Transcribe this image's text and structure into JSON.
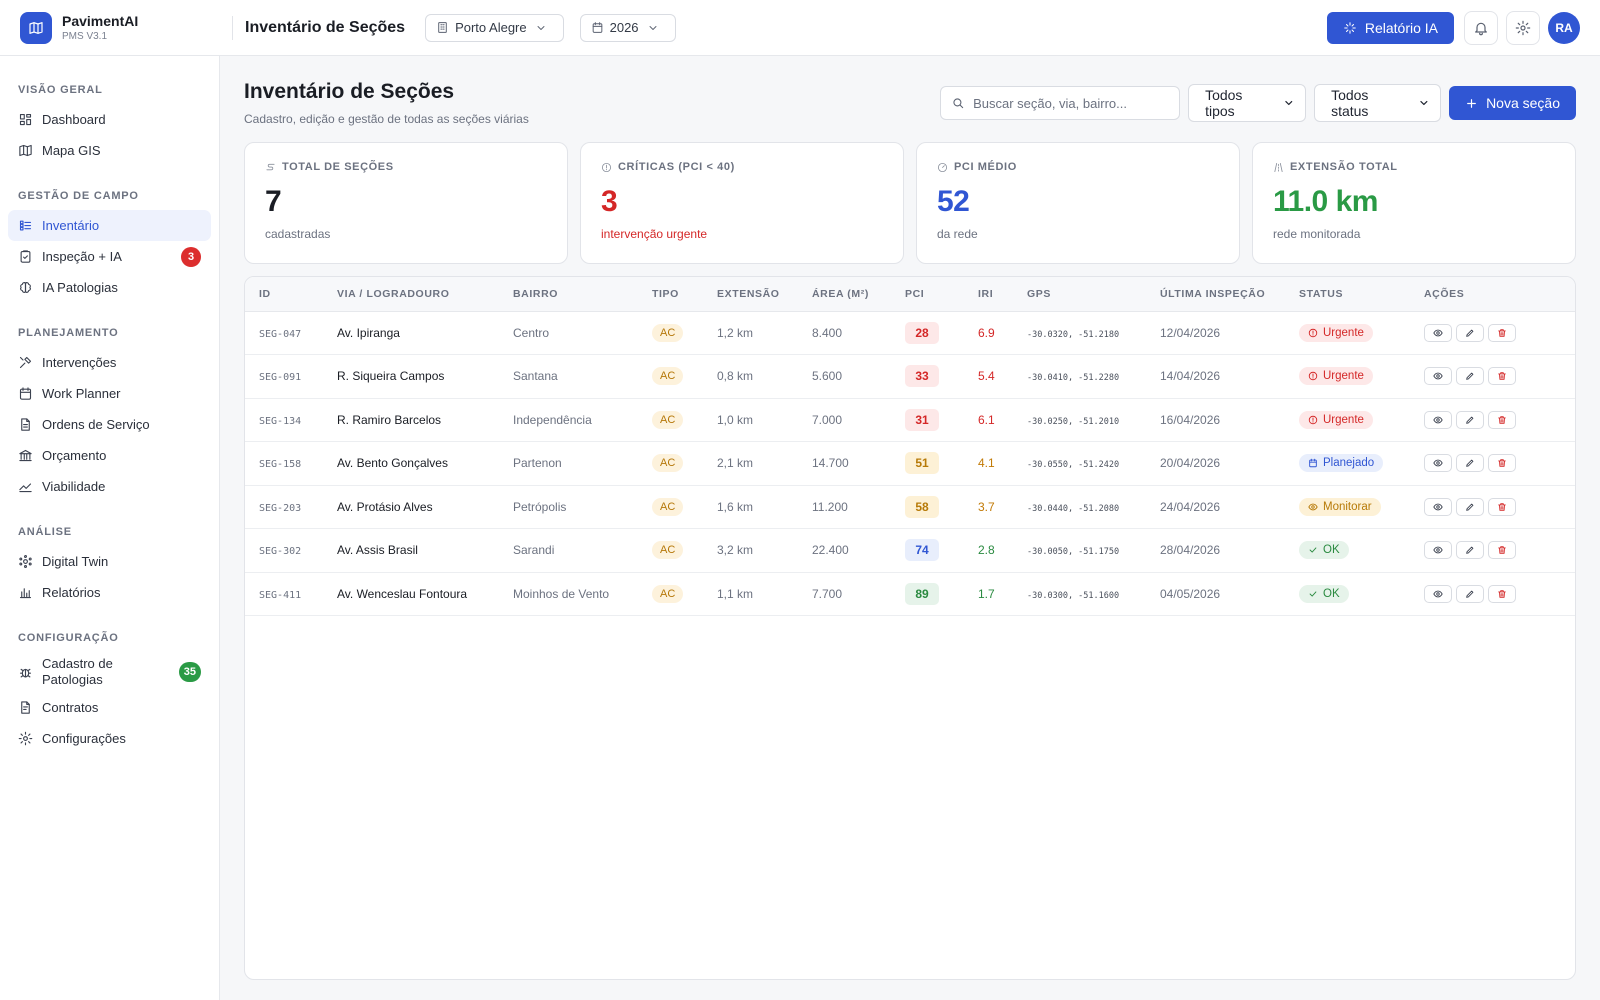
{
  "brand": {
    "name": "PavimentAI",
    "version": "PMS V3.1"
  },
  "topbar": {
    "title": "Inventário de Seções",
    "city": "Porto Alegre",
    "year": "2026",
    "ai_report_label": "Relatório IA",
    "avatar_initials": "RA"
  },
  "sidebar": {
    "sections": [
      {
        "label": "VISÃO GERAL",
        "items": [
          {
            "label": "Dashboard",
            "icon": "dashboard-icon"
          },
          {
            "label": "Mapa GIS",
            "icon": "map-icon"
          }
        ]
      },
      {
        "label": "GESTÃO DE CAMPO",
        "items": [
          {
            "label": "Inventário",
            "icon": "list-icon",
            "active": true
          },
          {
            "label": "Inspeção + IA",
            "icon": "clipboard-icon",
            "badge": "3"
          },
          {
            "label": "IA Patologias",
            "icon": "brain-icon"
          }
        ]
      },
      {
        "label": "PLANEJAMENTO",
        "items": [
          {
            "label": "Intervenções",
            "icon": "tools-icon"
          },
          {
            "label": "Work Planner",
            "icon": "calendar-icon"
          },
          {
            "label": "Ordens de Serviço",
            "icon": "document-icon"
          },
          {
            "label": "Orçamento",
            "icon": "bank-icon"
          },
          {
            "label": "Viabilidade",
            "icon": "trend-icon"
          }
        ]
      },
      {
        "label": "ANÁLISE",
        "items": [
          {
            "label": "Digital Twin",
            "icon": "twin-icon"
          },
          {
            "label": "Relatórios",
            "icon": "bar-chart-icon"
          }
        ]
      },
      {
        "label": "CONFIGURAÇÃO",
        "items": [
          {
            "label": "Cadastro de Patologias",
            "icon": "bug-icon",
            "badge": "35"
          },
          {
            "label": "Contratos",
            "icon": "contract-icon"
          },
          {
            "label": "Configurações",
            "icon": "gear-icon"
          }
        ]
      }
    ]
  },
  "page": {
    "title": "Inventário de Seções",
    "subtitle": "Cadastro, edição e gestão de todas as seções viárias",
    "search_placeholder": "Buscar seção, via, bairro...",
    "type_filter": "Todos tipos",
    "status_filter": "Todos status",
    "new_button": "Nova seção"
  },
  "stats": [
    {
      "label": "TOTAL DE SEÇÕES",
      "value": "7",
      "foot": "cadastradas",
      "color": "#1a1d24",
      "foot_color": "#6c7280"
    },
    {
      "label": "CRÍTICAS (PCI < 40)",
      "value": "3",
      "foot": "intervenção urgente",
      "color": "#d42727",
      "foot_color": "#d42727"
    },
    {
      "label": "PCI MÉDIO",
      "value": "52",
      "foot": "da rede",
      "color": "#3056d3",
      "foot_color": "#6c7280"
    },
    {
      "label": "EXTENSÃO TOTAL",
      "value": "11.0 km",
      "foot": "rede monitorada",
      "color": "#2a9a45",
      "foot_color": "#6c7280"
    }
  ],
  "table": {
    "columns": [
      "ID",
      "VIA / LOGRADOURO",
      "BAIRRO",
      "TIPO",
      "EXTENSÃO",
      "ÁREA (M²)",
      "PCI",
      "IRI",
      "GPS",
      "ÚLTIMA INSPEÇÃO",
      "STATUS",
      "AÇÕES"
    ],
    "rows": [
      {
        "id": "SEG-047",
        "via": "Av. Ipiranga",
        "bairro": "Centro",
        "tipo": "AC",
        "extensao": "1,2 km",
        "area": "8.400",
        "pci": "28",
        "pci_level": "red",
        "iri": "6.9",
        "iri_level": "red",
        "gps": "-30.0320, -51.2180",
        "inspecao": "12/04/2026",
        "status": "Urgente",
        "status_level": "urgente"
      },
      {
        "id": "SEG-091",
        "via": "R. Siqueira Campos",
        "bairro": "Santana",
        "tipo": "AC",
        "extensao": "0,8 km",
        "area": "5.600",
        "pci": "33",
        "pci_level": "red",
        "iri": "5.4",
        "iri_level": "red",
        "gps": "-30.0410, -51.2280",
        "inspecao": "14/04/2026",
        "status": "Urgente",
        "status_level": "urgente"
      },
      {
        "id": "SEG-134",
        "via": "R. Ramiro Barcelos",
        "bairro": "Independência",
        "tipo": "AC",
        "extensao": "1,0 km",
        "area": "7.000",
        "pci": "31",
        "pci_level": "red",
        "iri": "6.1",
        "iri_level": "red",
        "gps": "-30.0250, -51.2010",
        "inspecao": "16/04/2026",
        "status": "Urgente",
        "status_level": "urgente"
      },
      {
        "id": "SEG-158",
        "via": "Av. Bento Gonçalves",
        "bairro": "Partenon",
        "tipo": "AC",
        "extensao": "2,1 km",
        "area": "14.700",
        "pci": "51",
        "pci_level": "amber",
        "iri": "4.1",
        "iri_level": "amber",
        "gps": "-30.0550, -51.2420",
        "inspecao": "20/04/2026",
        "status": "Planejado",
        "status_level": "planejado"
      },
      {
        "id": "SEG-203",
        "via": "Av. Protásio Alves",
        "bairro": "Petrópolis",
        "tipo": "AC",
        "extensao": "1,6 km",
        "area": "11.200",
        "pci": "58",
        "pci_level": "amber",
        "iri": "3.7",
        "iri_level": "amber",
        "gps": "-30.0440, -51.2080",
        "inspecao": "24/04/2026",
        "status": "Monitorar",
        "status_level": "monitorar"
      },
      {
        "id": "SEG-302",
        "via": "Av. Assis Brasil",
        "bairro": "Sarandi",
        "tipo": "AC",
        "extensao": "3,2 km",
        "area": "22.400",
        "pci": "74",
        "pci_level": "blue",
        "iri": "2.8",
        "iri_level": "green",
        "gps": "-30.0050, -51.1750",
        "inspecao": "28/04/2026",
        "status": "OK",
        "status_level": "ok"
      },
      {
        "id": "SEG-411",
        "via": "Av. Wenceslau Fontoura",
        "bairro": "Moinhos de Vento",
        "tipo": "AC",
        "extensao": "1,1 km",
        "area": "7.700",
        "pci": "89",
        "pci_level": "green",
        "iri": "1.7",
        "iri_level": "green",
        "gps": "-30.0300, -51.1600",
        "inspecao": "04/05/2026",
        "status": "OK",
        "status_level": "ok"
      }
    ]
  }
}
